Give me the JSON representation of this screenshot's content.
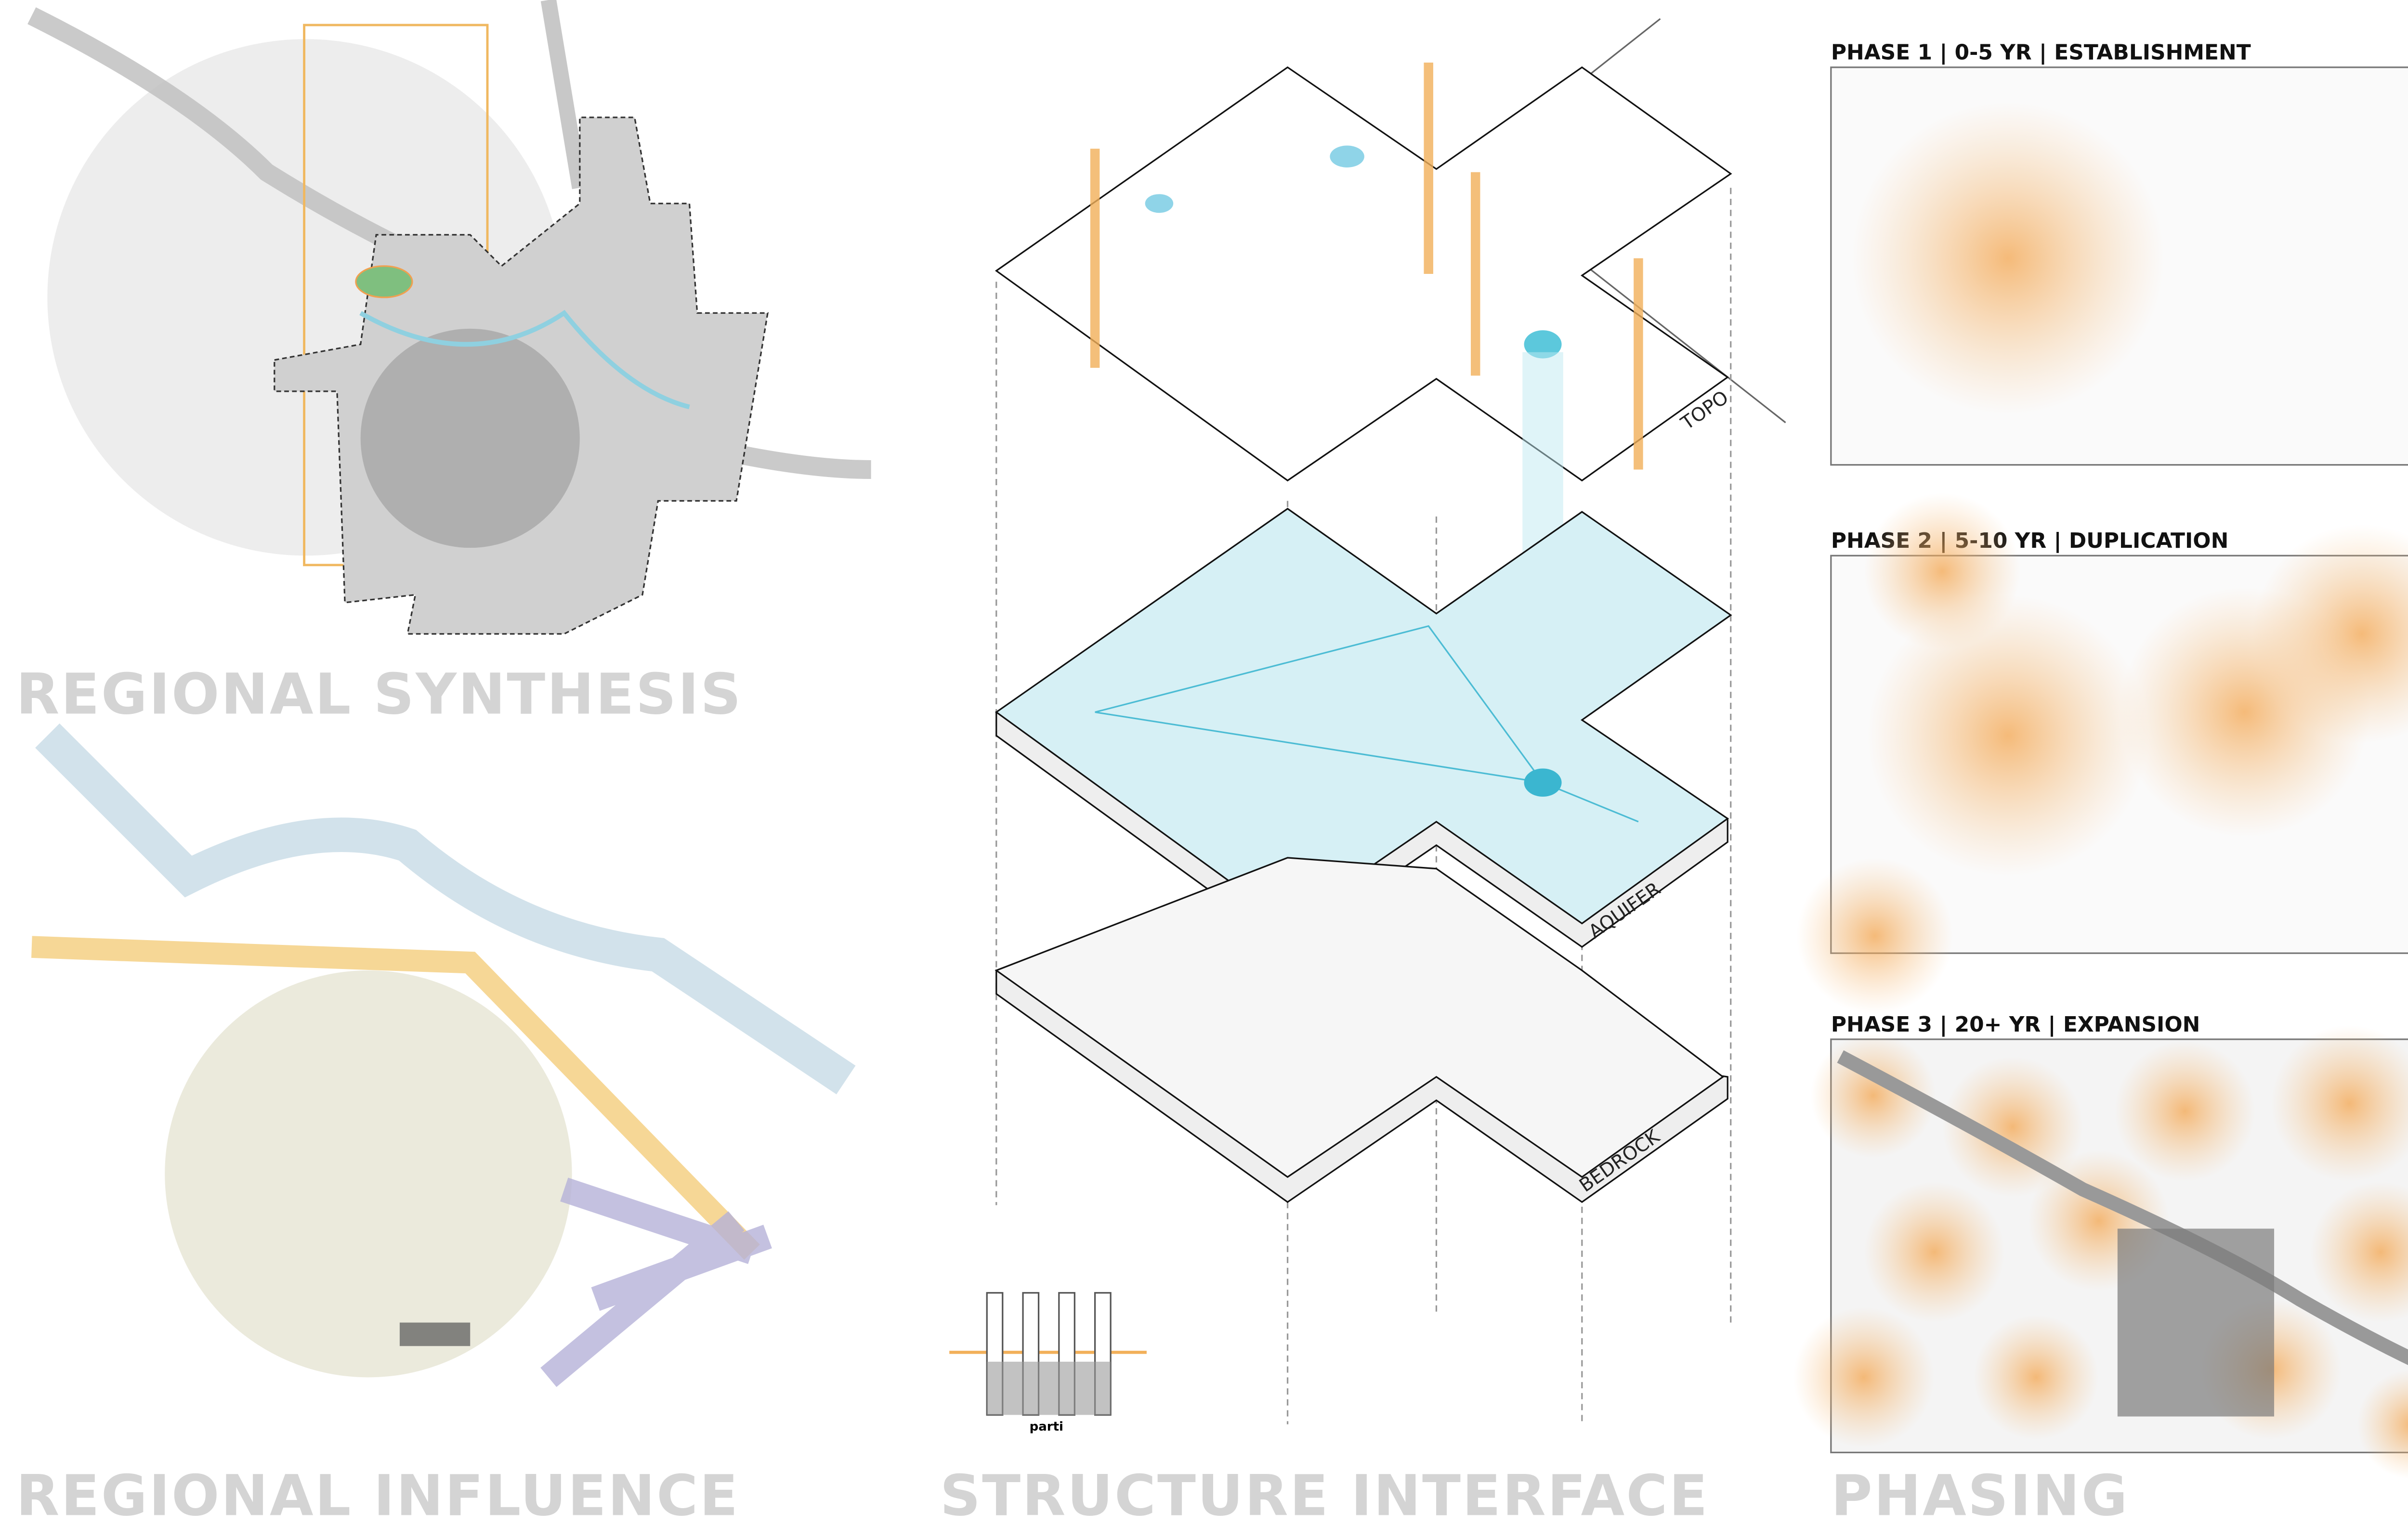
{
  "synthesis": {
    "title": "REGIONAL SYNTHESIS"
  },
  "influence": {
    "title": "REGIONAL INFLUENCE"
  },
  "structure": {
    "title": "STRUCTURE INTERFACE",
    "layers": [
      "TOPO",
      "AQUIFER",
      "BEDROCK"
    ],
    "parti": "parti"
  },
  "phasing": {
    "title": "PHASING",
    "phases": [
      "PHASE 1 | 0-5 YR | ESTABLISHMENT",
      "PHASE 2 | 5-10 YR | DUPLICATION",
      "PHASE 3 | 20+ YR | EXPANSION"
    ]
  }
}
